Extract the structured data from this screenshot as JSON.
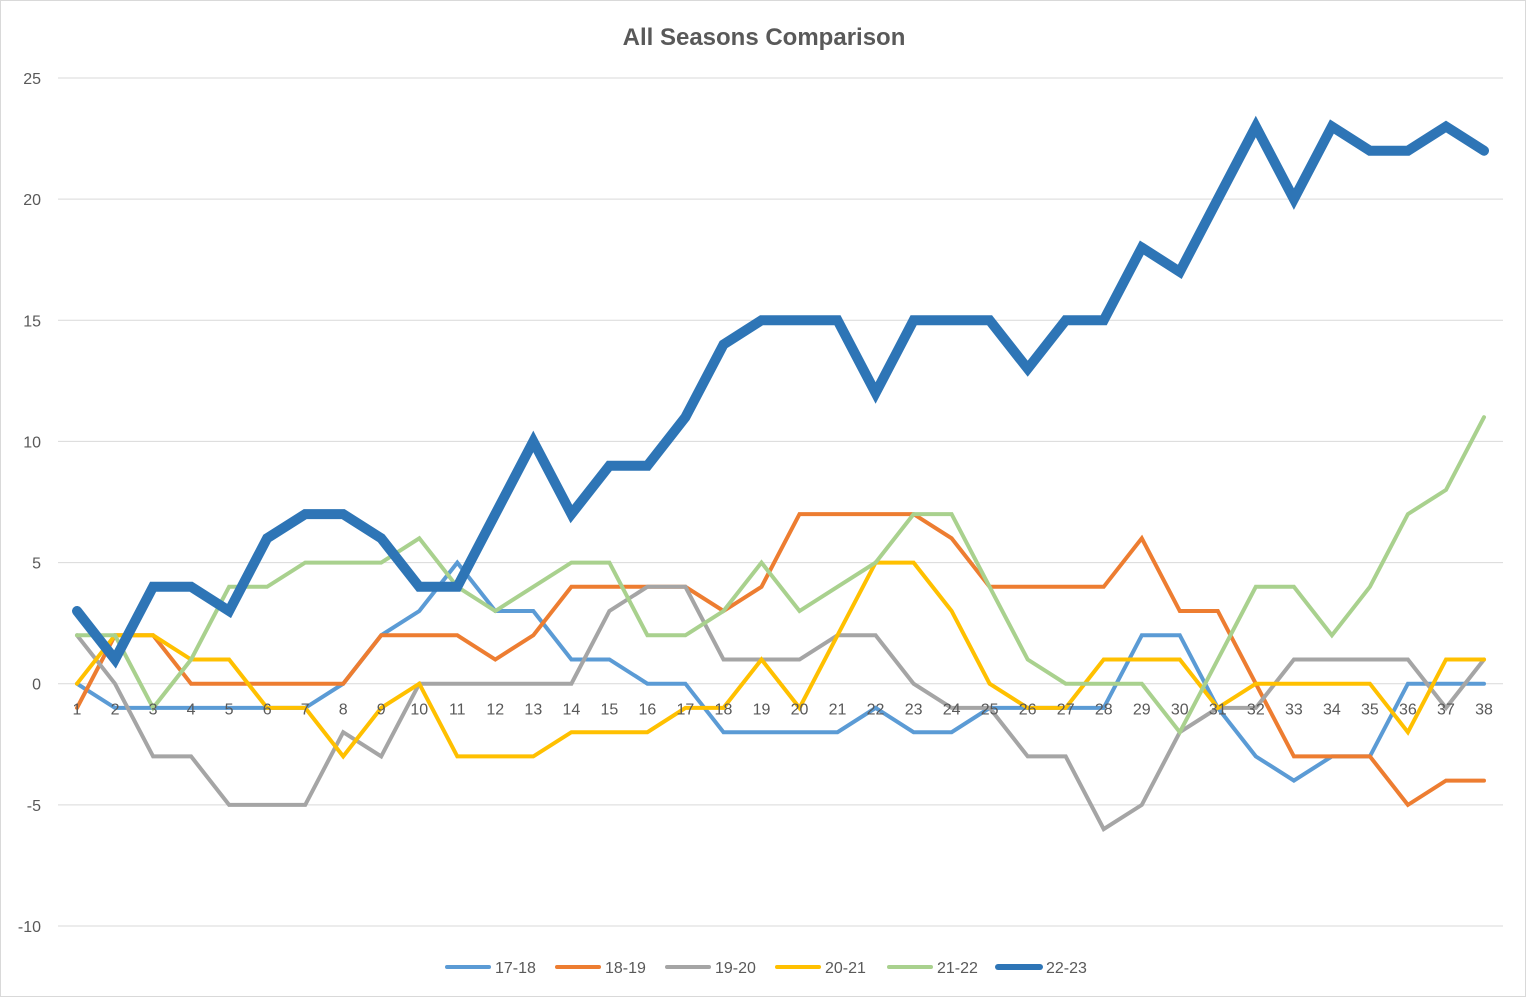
{
  "chart_data": {
    "type": "line",
    "title": "All Seasons Comparison",
    "xlabel": "",
    "ylabel": "",
    "ylim": [
      -10,
      25
    ],
    "y_ticks": [
      -10,
      -5,
      0,
      5,
      10,
      15,
      20,
      25
    ],
    "grid": true,
    "legend_position": "bottom",
    "categories": [
      "1",
      "2",
      "3",
      "4",
      "5",
      "6",
      "7",
      "8",
      "9",
      "10",
      "11",
      "12",
      "13",
      "14",
      "15",
      "16",
      "17",
      "18",
      "19",
      "20",
      "21",
      "22",
      "23",
      "24",
      "25",
      "26",
      "27",
      "28",
      "29",
      "30",
      "31",
      "32",
      "33",
      "34",
      "35",
      "36",
      "37",
      "38"
    ],
    "series": [
      {
        "name": "17-18",
        "color": "#5b9bd5",
        "width": 4,
        "values": [
          0,
          -1,
          -1,
          -1,
          -1,
          -1,
          -1,
          0,
          2,
          3,
          5,
          3,
          3,
          1,
          1,
          0,
          0,
          -2,
          -2,
          -2,
          -2,
          -1,
          -2,
          -2,
          -1,
          -1,
          -1,
          -1,
          2,
          2,
          -1,
          -3,
          -4,
          -3,
          -3,
          0,
          0,
          0
        ]
      },
      {
        "name": "18-19",
        "color": "#ed7d31",
        "width": 4,
        "values": [
          -1,
          2,
          2,
          0,
          0,
          0,
          0,
          0,
          2,
          2,
          2,
          1,
          2,
          4,
          4,
          4,
          4,
          3,
          4,
          7,
          7,
          7,
          7,
          6,
          4,
          4,
          4,
          4,
          6,
          3,
          3,
          0,
          -3,
          -3,
          -3,
          -5,
          -4,
          -4
        ]
      },
      {
        "name": "19-20",
        "color": "#a5a5a5",
        "width": 4,
        "values": [
          2,
          0,
          -3,
          -3,
          -5,
          -5,
          -5,
          -2,
          -3,
          0,
          0,
          0,
          0,
          0,
          3,
          4,
          4,
          1,
          1,
          1,
          2,
          2,
          0,
          -1,
          -1,
          -3,
          -3,
          -6,
          -5,
          -2,
          -1,
          -1,
          1,
          1,
          1,
          1,
          -1,
          1
        ]
      },
      {
        "name": "20-21",
        "color": "#ffc000",
        "width": 4,
        "values": [
          0,
          2,
          2,
          1,
          1,
          -1,
          -1,
          -3,
          -1,
          0,
          -3,
          -3,
          -3,
          -2,
          -2,
          -2,
          -1,
          -1,
          1,
          -1,
          2,
          5,
          5,
          3,
          0,
          -1,
          -1,
          1,
          1,
          1,
          -1,
          0,
          0,
          0,
          0,
          -2,
          1,
          1
        ]
      },
      {
        "name": "21-22",
        "color": "#a9d18e",
        "width": 4,
        "values": [
          2,
          2,
          -1,
          1,
          4,
          4,
          5,
          5,
          5,
          6,
          4,
          3,
          4,
          5,
          5,
          2,
          2,
          3,
          5,
          3,
          4,
          5,
          7,
          7,
          4,
          1,
          0,
          0,
          0,
          -2,
          1,
          4,
          4,
          2,
          4,
          7,
          8,
          11
        ]
      },
      {
        "name": "22-23",
        "color": "#2e75b6",
        "width": 10,
        "values": [
          3,
          1,
          4,
          4,
          3,
          6,
          7,
          7,
          6,
          4,
          4,
          7,
          10,
          7,
          9,
          9,
          11,
          14,
          15,
          15,
          15,
          12,
          15,
          15,
          15,
          13,
          15,
          15,
          18,
          17,
          20,
          23,
          20,
          23,
          22,
          22,
          23,
          22
        ]
      }
    ]
  }
}
